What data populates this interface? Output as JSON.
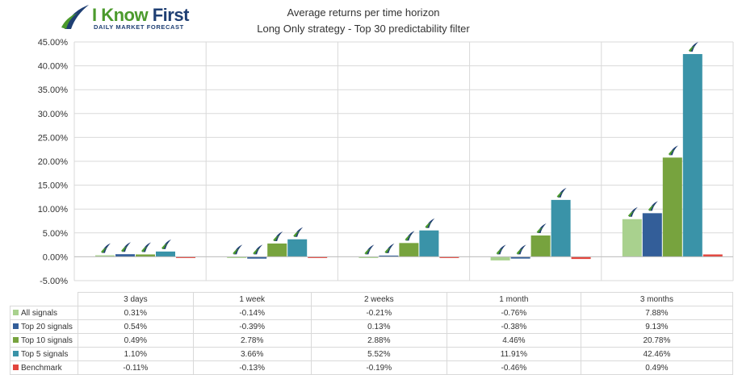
{
  "logo": {
    "brand_first": "I Know",
    "brand_second": "First",
    "tagline": "Daily Market Forecast"
  },
  "chart_data": {
    "type": "bar",
    "title": "Average returns per time horizon",
    "subtitle": "Long Only strategy - Top 30 predictability filter",
    "categories": [
      "3 days",
      "1 week",
      "2 weeks",
      "1 month",
      "3 months"
    ],
    "ylim": [
      -5,
      45
    ],
    "yticks": [
      "-5.00%",
      "0.00%",
      "5.00%",
      "10.00%",
      "15.00%",
      "20.00%",
      "25.00%",
      "30.00%",
      "35.00%",
      "40.00%",
      "45.00%"
    ],
    "grid": true,
    "legend_placement": "data-table-left",
    "series": [
      {
        "name": "All signals",
        "color": "#a9d18e",
        "values": [
          0.31,
          -0.14,
          -0.21,
          -0.76,
          7.88
        ],
        "labels": [
          "0.31%",
          "-0.14%",
          "-0.21%",
          "-0.76%",
          "7.88%"
        ]
      },
      {
        "name": "Top 20 signals",
        "color": "#335e99",
        "values": [
          0.54,
          -0.39,
          0.13,
          -0.38,
          9.13
        ],
        "labels": [
          "0.54%",
          "-0.39%",
          "0.13%",
          "-0.38%",
          "9.13%"
        ]
      },
      {
        "name": "Top 10 signals",
        "color": "#77a33e",
        "values": [
          0.49,
          2.78,
          2.88,
          4.46,
          20.78
        ],
        "labels": [
          "0.49%",
          "2.78%",
          "2.88%",
          "4.46%",
          "20.78%"
        ]
      },
      {
        "name": "Top 5 signals",
        "color": "#3a93a8",
        "values": [
          1.1,
          3.66,
          5.52,
          11.91,
          42.46
        ],
        "labels": [
          "1.10%",
          "3.66%",
          "5.52%",
          "11.91%",
          "42.46%"
        ]
      },
      {
        "name": "Benchmark",
        "color": "#e2453d",
        "values": [
          -0.11,
          -0.13,
          -0.19,
          -0.46,
          0.49
        ],
        "labels": [
          "-0.11%",
          "-0.13%",
          "-0.19%",
          "-0.46%",
          "0.49%"
        ]
      }
    ],
    "marker_icon": "swoosh-logo-icon"
  }
}
